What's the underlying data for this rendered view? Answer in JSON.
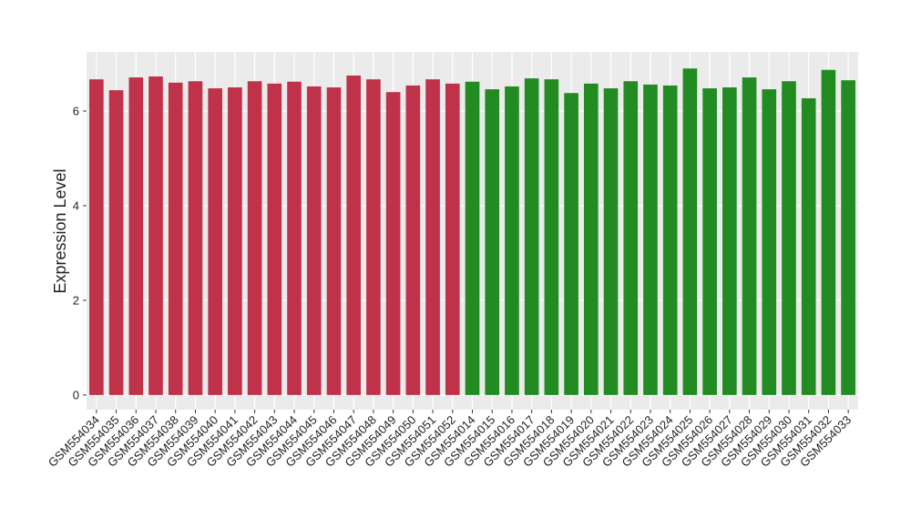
{
  "chart_data": {
    "type": "bar",
    "y_label": "Expression Level",
    "categories": [
      "GSM554034",
      "GSM554035",
      "GSM554036",
      "GSM554037",
      "GSM554038",
      "GSM554039",
      "GSM554040",
      "GSM554041",
      "GSM554042",
      "GSM554043",
      "GSM554044",
      "GSM554045",
      "GSM554046",
      "GSM554047",
      "GSM554048",
      "GSM554049",
      "GSM554050",
      "GSM554051",
      "GSM554052",
      "GSM554014",
      "GSM554015",
      "GSM554016",
      "GSM554017",
      "GSM554018",
      "GSM554019",
      "GSM554020",
      "GSM554021",
      "GSM554022",
      "GSM554023",
      "GSM554024",
      "GSM554025",
      "GSM554026",
      "GSM554027",
      "GSM554028",
      "GSM554029",
      "GSM554030",
      "GSM554031",
      "GSM554032",
      "GSM554033"
    ],
    "values": [
      6.67,
      6.44,
      6.71,
      6.73,
      6.6,
      6.63,
      6.48,
      6.5,
      6.63,
      6.58,
      6.62,
      6.52,
      6.5,
      6.75,
      6.67,
      6.4,
      6.54,
      6.67,
      6.58,
      6.62,
      6.46,
      6.52,
      6.69,
      6.67,
      6.38,
      6.58,
      6.48,
      6.63,
      6.56,
      6.54,
      6.9,
      6.48,
      6.5,
      6.71,
      6.46,
      6.63,
      6.27,
      6.87,
      6.65
    ],
    "colors": [
      "#c0324a",
      "#c0324a",
      "#c0324a",
      "#c0324a",
      "#c0324a",
      "#c0324a",
      "#c0324a",
      "#c0324a",
      "#c0324a",
      "#c0324a",
      "#c0324a",
      "#c0324a",
      "#c0324a",
      "#c0324a",
      "#c0324a",
      "#c0324a",
      "#c0324a",
      "#c0324a",
      "#c0324a",
      "#228b22",
      "#228b22",
      "#228b22",
      "#228b22",
      "#228b22",
      "#228b22",
      "#228b22",
      "#228b22",
      "#228b22",
      "#228b22",
      "#228b22",
      "#228b22",
      "#228b22",
      "#228b22",
      "#228b22",
      "#228b22",
      "#228b22",
      "#228b22",
      "#228b22",
      "#228b22"
    ],
    "ylim": [
      -0.31,
      7.25
    ],
    "yticks": [
      0,
      2,
      4,
      6
    ],
    "grid": true
  }
}
